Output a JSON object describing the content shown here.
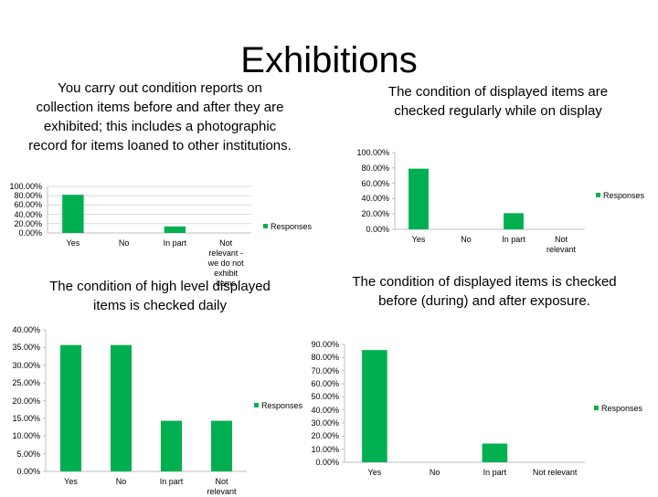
{
  "title": "Exhibitions",
  "chart_data": [
    {
      "type": "bar",
      "title": "You carry out condition reports on collection items before and after they are exhibited; this includes a photographic record for items loaned to other institutions.",
      "categories": [
        "Yes",
        "No",
        "In part",
        "Not relevant - we do not exhibit items"
      ],
      "series": [
        {
          "name": "Responses",
          "color": "#00b050",
          "values": [
            82,
            0,
            14,
            0
          ]
        }
      ],
      "ylim": [
        0,
        100
      ],
      "yticks": [
        {
          "value": 0,
          "label": "0.00%"
        },
        {
          "value": 20,
          "label": "20.00%"
        },
        {
          "value": 40,
          "label": "40.00%"
        },
        {
          "value": 60,
          "label": "60.00%"
        },
        {
          "value": 80,
          "label": "80.00%"
        },
        {
          "value": 100,
          "label": "100.00%"
        }
      ],
      "grid": true,
      "legend": "right"
    },
    {
      "type": "bar",
      "title": "The condition of displayed items are checked regularly while on display",
      "categories": [
        "Yes",
        "No",
        "In part",
        "Not relevant"
      ],
      "series": [
        {
          "name": "Responses",
          "color": "#00b050",
          "values": [
            79,
            0,
            21,
            0
          ]
        }
      ],
      "ylim": [
        0,
        100
      ],
      "yticks": [
        {
          "value": 0,
          "label": "0.00%"
        },
        {
          "value": 20,
          "label": "20.00%"
        },
        {
          "value": 40,
          "label": "40.00%"
        },
        {
          "value": 60,
          "label": "60.00%"
        },
        {
          "value": 80,
          "label": "80.00%"
        },
        {
          "value": 100,
          "label": "100.00%"
        }
      ],
      "grid": false,
      "legend": "right"
    },
    {
      "type": "bar",
      "title": "The condition of high level displayed items is checked daily",
      "categories": [
        "Yes",
        "No",
        "In part",
        "Not relevant"
      ],
      "series": [
        {
          "name": "Responses",
          "color": "#00b050",
          "values": [
            35.7,
            35.7,
            14.3,
            14.3
          ]
        }
      ],
      "ylim": [
        0,
        40
      ],
      "yticks": [
        {
          "value": 0,
          "label": "0.00%"
        },
        {
          "value": 5,
          "label": "5.00%"
        },
        {
          "value": 10,
          "label": "10.00%"
        },
        {
          "value": 15,
          "label": "15.00%"
        },
        {
          "value": 20,
          "label": "20.00%"
        },
        {
          "value": 25,
          "label": "25.00%"
        },
        {
          "value": 30,
          "label": "30.00%"
        },
        {
          "value": 35,
          "label": "35.00%"
        },
        {
          "value": 40,
          "label": "40.00%"
        }
      ],
      "grid": false,
      "legend": "right"
    },
    {
      "type": "bar",
      "title": "The condition of displayed items is checked before (during) and after exposure.",
      "categories": [
        "Yes",
        "No",
        "In part",
        "Not relevant"
      ],
      "series": [
        {
          "name": "Responses",
          "color": "#00b050",
          "values": [
            85.7,
            0,
            14.3,
            0
          ]
        }
      ],
      "ylim": [
        0,
        90
      ],
      "yticks": [
        {
          "value": 0,
          "label": "0.00%"
        },
        {
          "value": 10,
          "label": "10.00%"
        },
        {
          "value": 20,
          "label": "20.00%"
        },
        {
          "value": 30,
          "label": "30.00%"
        },
        {
          "value": 40,
          "label": "40.00%"
        },
        {
          "value": 50,
          "label": "50.00%"
        },
        {
          "value": 60,
          "label": "60.00%"
        },
        {
          "value": 70,
          "label": "70.00%"
        },
        {
          "value": 80,
          "label": "80.00%"
        },
        {
          "value": 90,
          "label": "90.00%"
        }
      ],
      "grid": false,
      "legend": "right"
    }
  ]
}
